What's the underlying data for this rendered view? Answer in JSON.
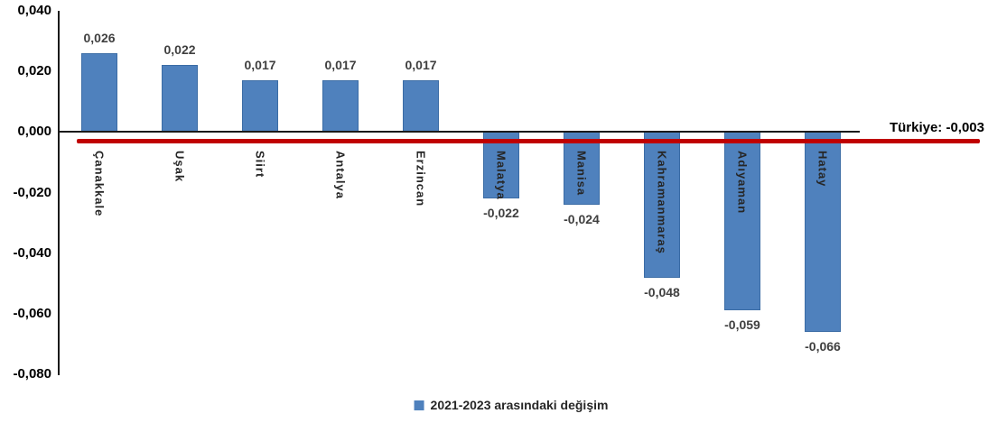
{
  "chart_data": {
    "type": "bar",
    "title": "",
    "xlabel": "",
    "ylabel": "",
    "categories": [
      "Çanakkale",
      "Uşak",
      "Siirt",
      "Antalya",
      "Erzincan",
      "Malatya",
      "Manisa",
      "Kahramanmaraş",
      "Adıyaman",
      "Hatay"
    ],
    "values": [
      0.026,
      0.022,
      0.017,
      0.017,
      0.017,
      -0.022,
      -0.024,
      -0.048,
      -0.059,
      -0.066
    ],
    "value_labels": [
      "0,026",
      "0,022",
      "0,017",
      "0,017",
      "0,017",
      "-0,022",
      "-0,024",
      "-0,048",
      "-0,059",
      "-0,066"
    ],
    "ylim": [
      -0.08,
      0.04
    ],
    "y_ticks": [
      {
        "value": 0.04,
        "label": "0,040"
      },
      {
        "value": 0.02,
        "label": "0,020"
      },
      {
        "value": 0.0,
        "label": "0,000"
      },
      {
        "value": -0.02,
        "label": "-0,020"
      },
      {
        "value": -0.04,
        "label": "-0,040"
      },
      {
        "value": -0.06,
        "label": "-0,060"
      },
      {
        "value": -0.08,
        "label": "-0,080"
      }
    ],
    "grid": false,
    "bar_color": "#4F81BD",
    "bar_border_color": "#3B6CA5",
    "reference_line": {
      "value": -0.003,
      "label": "Türkiye: -0,003",
      "color": "#C00000"
    },
    "legend": {
      "position": "bottom",
      "label": "2021-2023 arasındaki değişim",
      "marker_color": "#4F81BD"
    }
  }
}
